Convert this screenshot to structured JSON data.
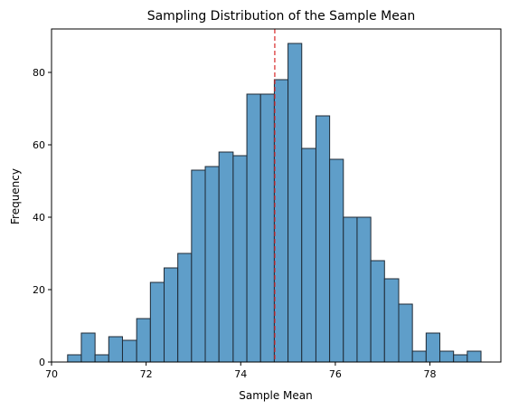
{
  "chart_data": {
    "type": "bar",
    "title": "Sampling Distribution of the Sample Mean",
    "xlabel": "Sample Mean",
    "ylabel": "Frequency",
    "xlim": [
      70.0,
      79.5
    ],
    "ylim": [
      0,
      92
    ],
    "grid": false,
    "bar_color": "#5f9ec9",
    "bar_edge_color": "#1f2a35",
    "mean_line": {
      "x": 74.72,
      "color": "#d62728",
      "style": "dashed"
    },
    "x_ticks": [
      70,
      72,
      74,
      76,
      78
    ],
    "x_tick_labels": [
      "70",
      "72",
      "74",
      "76",
      "78"
    ],
    "y_ticks": [
      0,
      20,
      40,
      60,
      80
    ],
    "y_tick_labels": [
      "0",
      "20",
      "40",
      "60",
      "80"
    ],
    "bins": [
      {
        "x0": 70.34,
        "x1": 70.63,
        "count": 2
      },
      {
        "x0": 70.63,
        "x1": 70.92,
        "count": 8
      },
      {
        "x0": 70.92,
        "x1": 71.21,
        "count": 2
      },
      {
        "x0": 71.21,
        "x1": 71.5,
        "count": 7
      },
      {
        "x0": 71.5,
        "x1": 71.8,
        "count": 6
      },
      {
        "x0": 71.8,
        "x1": 72.09,
        "count": 12
      },
      {
        "x0": 72.09,
        "x1": 72.38,
        "count": 22
      },
      {
        "x0": 72.38,
        "x1": 72.67,
        "count": 26
      },
      {
        "x0": 72.67,
        "x1": 72.96,
        "count": 30
      },
      {
        "x0": 72.96,
        "x1": 73.25,
        "count": 53
      },
      {
        "x0": 73.25,
        "x1": 73.54,
        "count": 54
      },
      {
        "x0": 73.54,
        "x1": 73.84,
        "count": 58
      },
      {
        "x0": 73.84,
        "x1": 74.13,
        "count": 57
      },
      {
        "x0": 74.13,
        "x1": 74.42,
        "count": 74
      },
      {
        "x0": 74.42,
        "x1": 74.71,
        "count": 74
      },
      {
        "x0": 74.71,
        "x1": 75.0,
        "count": 78
      },
      {
        "x0": 75.0,
        "x1": 75.29,
        "count": 88
      },
      {
        "x0": 75.29,
        "x1": 75.59,
        "count": 59
      },
      {
        "x0": 75.59,
        "x1": 75.88,
        "count": 68
      },
      {
        "x0": 75.88,
        "x1": 76.17,
        "count": 56
      },
      {
        "x0": 76.17,
        "x1": 76.46,
        "count": 40
      },
      {
        "x0": 76.46,
        "x1": 76.75,
        "count": 40
      },
      {
        "x0": 76.75,
        "x1": 77.04,
        "count": 28
      },
      {
        "x0": 77.04,
        "x1": 77.34,
        "count": 23
      },
      {
        "x0": 77.34,
        "x1": 77.63,
        "count": 16
      },
      {
        "x0": 77.63,
        "x1": 77.92,
        "count": 3
      },
      {
        "x0": 77.92,
        "x1": 78.21,
        "count": 8
      },
      {
        "x0": 78.21,
        "x1": 78.5,
        "count": 3
      },
      {
        "x0": 78.5,
        "x1": 78.79,
        "count": 2
      },
      {
        "x0": 78.79,
        "x1": 79.08,
        "count": 3
      }
    ]
  }
}
